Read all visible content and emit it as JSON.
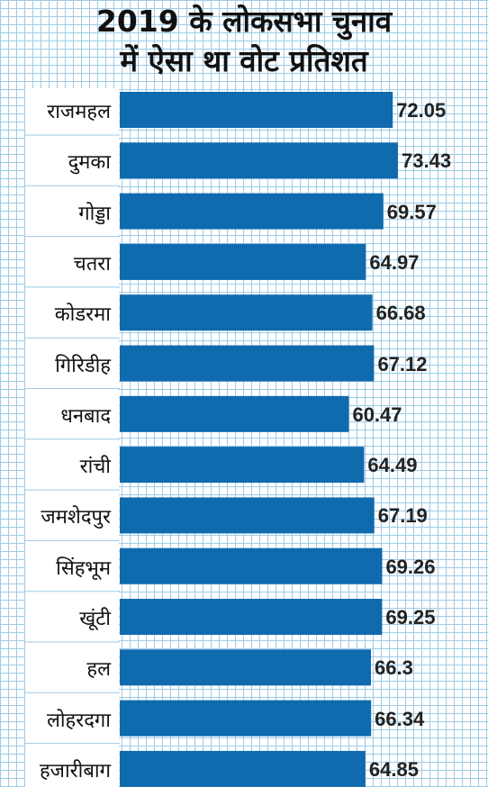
{
  "chart_data": {
    "type": "bar",
    "orientation": "horizontal",
    "title": "2019 के लोकसभा चुनाव\nमें ऐसा था वोट प्रतिशत",
    "title_lines": [
      "2019 के लोकसभा चुनाव",
      "में ऐसा था वोट प्रतिशत"
    ],
    "categories": [
      "राजमहल",
      "दुमका",
      "गोड्डा",
      "चतरा",
      "कोडरमा",
      "गिरिडीह",
      "धनबाद",
      "रांची",
      "जमशेदपुर",
      "सिंहभूम",
      "खूंटी",
      "हल",
      "लोहरदगा",
      "हजारीबाग"
    ],
    "values": [
      72.05,
      73.43,
      69.57,
      64.97,
      66.68,
      67.12,
      60.47,
      64.49,
      67.19,
      69.26,
      69.25,
      66.3,
      66.34,
      64.85
    ],
    "value_labels": [
      "72.05",
      "73.43",
      "69.57",
      "64.97",
      "66.68",
      "67.12",
      "60.47",
      "64.49",
      "67.19",
      "69.26",
      "69.25",
      "66.3",
      "66.34",
      "64.85"
    ],
    "bar_color": "#0f6aae",
    "grid": true,
    "grid_color": "#9ecbe8"
  }
}
